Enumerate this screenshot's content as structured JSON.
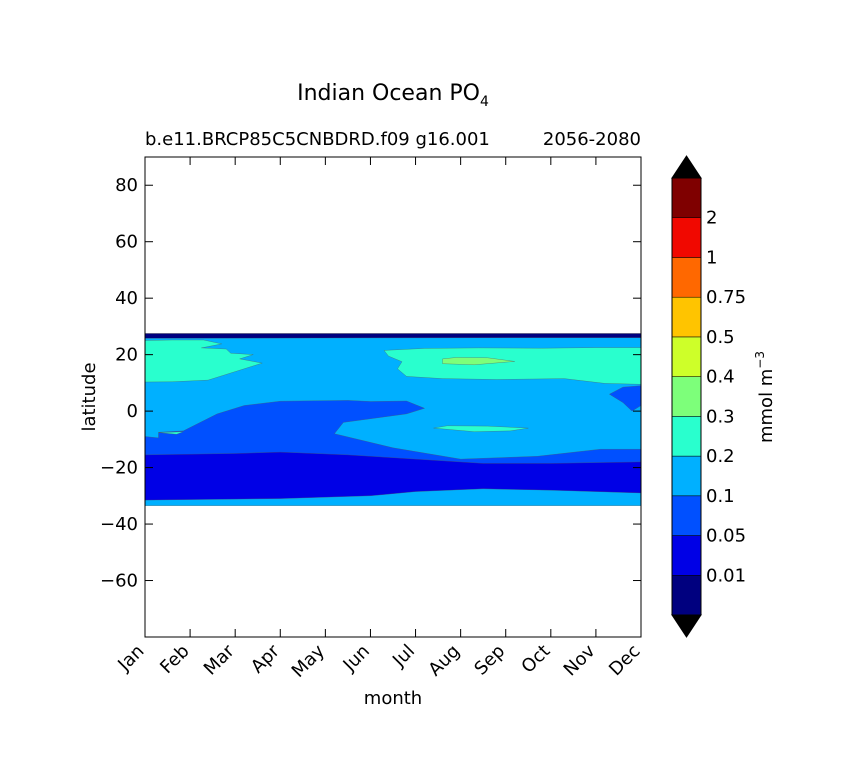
{
  "chart_data": {
    "type": "contourf",
    "title": "Indian Ocean PO",
    "title_subscript": "4",
    "subtitle_left": "b.e11.BRCP85C5CNBDRD.f09 g16.001",
    "subtitle_right": "2056-2080",
    "xlabel": "month",
    "ylabel": "latitude",
    "x_categories": [
      "Jan",
      "Feb",
      "Mar",
      "Apr",
      "May",
      "Jun",
      "Jul",
      "Aug",
      "Sep",
      "Oct",
      "Nov",
      "Dec"
    ],
    "ylim": [
      -80,
      90
    ],
    "yticks": [
      80,
      60,
      40,
      20,
      0,
      -20,
      -40,
      -60
    ],
    "ytick_labels": [
      "80",
      "60",
      "40",
      "20",
      "0",
      "−20",
      "−40",
      "−60"
    ],
    "colorbar": {
      "label": "mmol m",
      "label_superscript": "−3",
      "levels": [
        "0.01",
        "0.05",
        "0.1",
        "0.2",
        "0.3",
        "0.4",
        "0.5",
        "0.75",
        "1",
        "2"
      ],
      "colors": [
        "#00007f",
        "#0000e6",
        "#0050ff",
        "#00b0ff",
        "#29ffce",
        "#7dff7a",
        "#ceff29",
        "#ffc400",
        "#ff6800",
        "#f10800",
        "#7f0000"
      ],
      "extend": "both",
      "under_color": "#000000",
      "over_color": "#000000"
    },
    "data_extent_lat": [
      -33.5,
      27.5
    ],
    "regions": [
      {
        "level_index": 3,
        "description": "background band 0.1–0.2",
        "lat_range": [
          -33.5,
          27.5
        ]
      },
      {
        "level_index": 2,
        "description": "0.05–0.1 band",
        "lat_range": [
          -22,
          9
        ]
      },
      {
        "level_index": 1,
        "description": "0.01–0.05 band",
        "lat_range": [
          -31,
          -15
        ]
      },
      {
        "level_index": 0,
        "description": "0.01 strip at northern edge",
        "lat_range": [
          26,
          27.5
        ]
      },
      {
        "level_index": 4,
        "description": "0.2–0.3 patches",
        "lat_range": [
          10,
          26
        ]
      },
      {
        "level_index": 5,
        "description": "0.3–0.4 patch near Aug",
        "lat_range": [
          16,
          19
        ]
      }
    ]
  }
}
